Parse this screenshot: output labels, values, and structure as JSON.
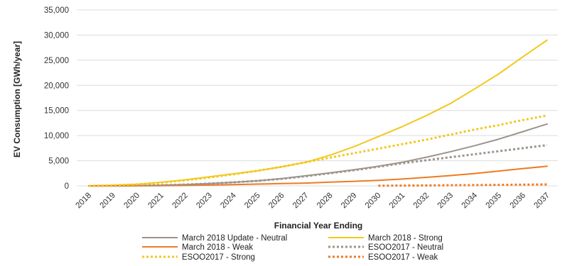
{
  "chart_data": {
    "type": "line",
    "title": "",
    "xlabel": "Financial Year Ending",
    "ylabel": "EV Consumption [GWh/year]",
    "ylim": [
      0,
      35000
    ],
    "yticks": [
      0,
      5000,
      10000,
      15000,
      20000,
      25000,
      30000,
      35000
    ],
    "ytick_labels": [
      "0",
      "5,000",
      "10,000",
      "15,000",
      "20,000",
      "25,000",
      "30,000",
      "35,000"
    ],
    "grid": "horizontal",
    "legend_position": "bottom",
    "categories": [
      "2018",
      "2019",
      "2020",
      "2021",
      "2022",
      "2023",
      "2024",
      "2025",
      "2026",
      "2027",
      "2028",
      "2029",
      "2030",
      "2031",
      "2032",
      "2033",
      "2034",
      "2035",
      "2036",
      "2037"
    ],
    "series": [
      {
        "name": "March 2018 Update - Neutral",
        "color": "#9c948c",
        "dash": "solid",
        "values": [
          0,
          20,
          60,
          120,
          250,
          450,
          700,
          1000,
          1450,
          2000,
          2600,
          3200,
          3900,
          4700,
          5700,
          6800,
          8000,
          9300,
          10800,
          12300
        ]
      },
      {
        "name": "March 2018 - Strong",
        "color": "#f2c81e",
        "dash": "solid",
        "values": [
          0,
          100,
          300,
          700,
          1200,
          1800,
          2400,
          3000,
          3800,
          4700,
          6100,
          7800,
          9800,
          11800,
          14000,
          16400,
          19300,
          22300,
          25700,
          29000
        ]
      },
      {
        "name": "March 2018 - Weak",
        "color": "#ef7a22",
        "dash": "solid",
        "values": [
          0,
          5,
          15,
          40,
          80,
          150,
          250,
          350,
          450,
          550,
          750,
          900,
          1100,
          1350,
          1700,
          2050,
          2450,
          2950,
          3450,
          3900
        ]
      },
      {
        "name": "ESOO2017 - Neutral",
        "color": "#9c948c",
        "dash": "dotted",
        "values": [
          0,
          20,
          60,
          130,
          260,
          450,
          700,
          1000,
          1400,
          1900,
          2500,
          3100,
          3800,
          4500,
          5100,
          5700,
          6300,
          6900,
          7500,
          8100
        ]
      },
      {
        "name": "ESOO2017 - Strong",
        "color": "#f2c81e",
        "dash": "dotted",
        "values": [
          0,
          100,
          300,
          650,
          1100,
          1650,
          2300,
          3000,
          3800,
          4700,
          5600,
          6500,
          7400,
          8300,
          9200,
          10200,
          11200,
          12100,
          13100,
          14000
        ]
      },
      {
        "name": "ESOO2017 - Weak",
        "color": "#ef7a22",
        "dash": "dotted",
        "start_index": 12,
        "values": [
          null,
          null,
          null,
          null,
          null,
          null,
          null,
          null,
          null,
          null,
          null,
          null,
          30,
          60,
          90,
          120,
          160,
          200,
          240,
          280
        ]
      }
    ]
  }
}
